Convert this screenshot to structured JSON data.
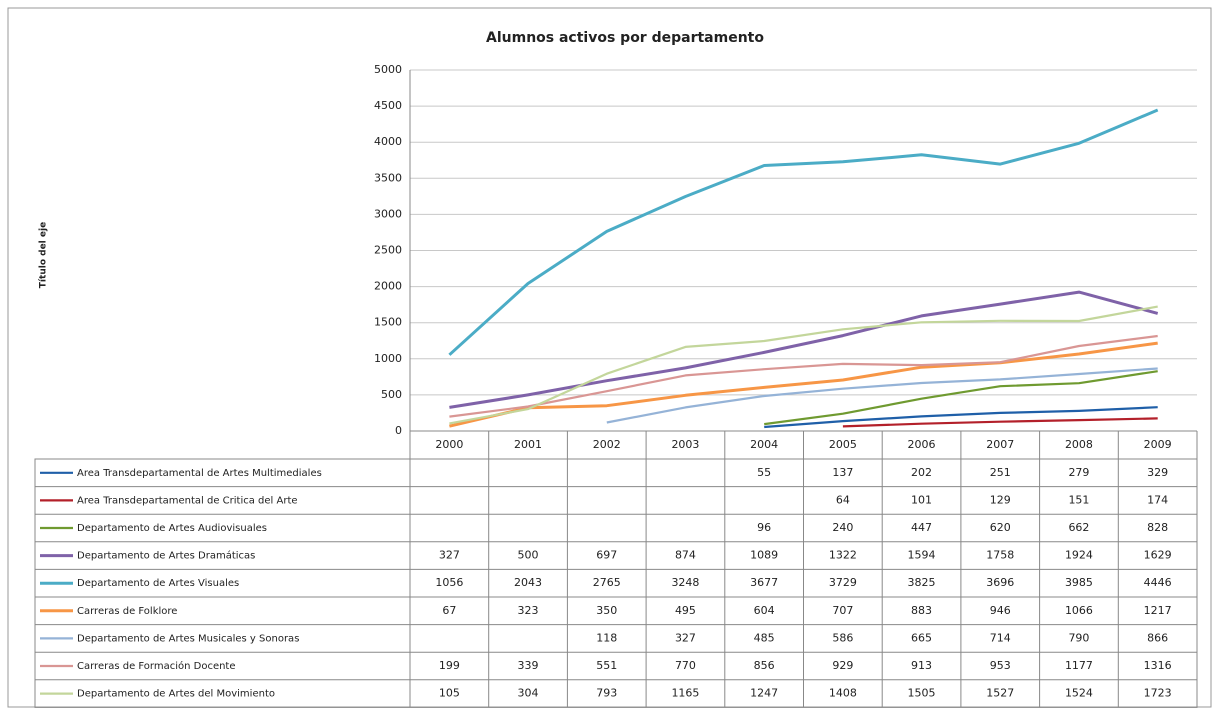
{
  "chart_data": {
    "type": "line",
    "title": "Alumnos activos por departamento",
    "y_label": "Título del eje",
    "categories": [
      "2000",
      "2001",
      "2002",
      "2003",
      "2004",
      "2005",
      "2006",
      "2007",
      "2008",
      "2009"
    ],
    "ylim": [
      0,
      5000
    ],
    "yticks": [
      0,
      500,
      1000,
      1500,
      2000,
      2500,
      3000,
      3500,
      4000,
      4500,
      5000
    ],
    "grid": true,
    "series": [
      {
        "name": "Area Transdepartamental  de Artes Multimediales",
        "color": "#1f5fa8",
        "values": [
          null,
          null,
          null,
          null,
          55,
          137,
          202,
          251,
          279,
          329
        ]
      },
      {
        "name": "Area Transdepartamental  de Critica del Arte",
        "color": "#b3202a",
        "values": [
          null,
          null,
          null,
          null,
          null,
          64,
          101,
          129,
          151,
          174
        ]
      },
      {
        "name": "Departamento de Artes Audiovisuales",
        "color": "#6f9a30",
        "values": [
          null,
          null,
          null,
          null,
          96,
          240,
          447,
          620,
          662,
          828
        ]
      },
      {
        "name": "Departamento de Artes Dramáticas",
        "color": "#7f62a8",
        "values": [
          327,
          500,
          697,
          874,
          1089,
          1322,
          1594,
          1758,
          1924,
          1629
        ]
      },
      {
        "name": "Departamento de Artes Visuales",
        "color": "#4bacc6",
        "values": [
          1056,
          2043,
          2765,
          3248,
          3677,
          3729,
          3825,
          3696,
          3985,
          4446
        ]
      },
      {
        "name": "Carreras de Folklore",
        "color": "#f79646",
        "values": [
          67,
          323,
          350,
          495,
          604,
          707,
          883,
          946,
          1066,
          1217
        ]
      },
      {
        "name": "Departamento de Artes Musicales y Sonoras",
        "color": "#95b3d7",
        "values": [
          null,
          null,
          118,
          327,
          485,
          586,
          665,
          714,
          790,
          866
        ]
      },
      {
        "name": "Carreras de Formación  Docente",
        "color": "#d99694",
        "values": [
          199,
          339,
          551,
          770,
          856,
          929,
          913,
          953,
          1177,
          1316
        ]
      },
      {
        "name": "Departamento de Artes del Movimiento",
        "color": "#c3d69b",
        "values": [
          105,
          304,
          793,
          1165,
          1247,
          1408,
          1505,
          1527,
          1524,
          1723
        ]
      }
    ]
  }
}
